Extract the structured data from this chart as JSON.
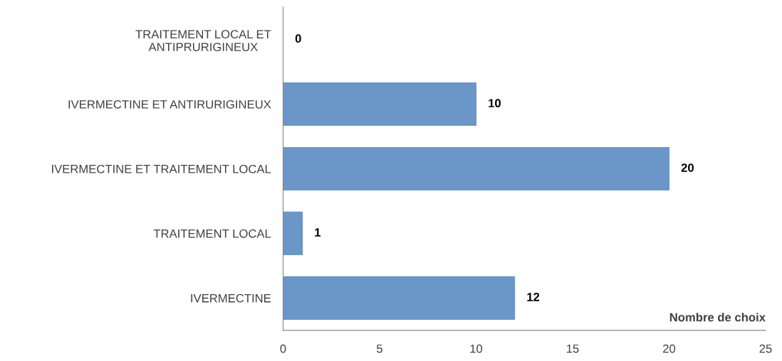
{
  "chart_data": {
    "type": "bar",
    "orientation": "horizontal",
    "xlabel": "Nombre de choix",
    "categories": [
      "TRAITEMENT LOCAL ET\nANTIPRURIGINEUX",
      "IVERMECTINE ET ANTIRURIGINEUX",
      "IVERMECTINE ET TRAITEMENT LOCAL",
      "TRAITEMENT LOCAL",
      "IVERMECTINE"
    ],
    "values": [
      0,
      10,
      20,
      1,
      12
    ],
    "color": "#6a96c8",
    "xlim": [
      0,
      25
    ],
    "xticks": [
      0,
      5,
      10,
      15,
      20,
      25
    ],
    "grid": false,
    "data_labels": true
  }
}
